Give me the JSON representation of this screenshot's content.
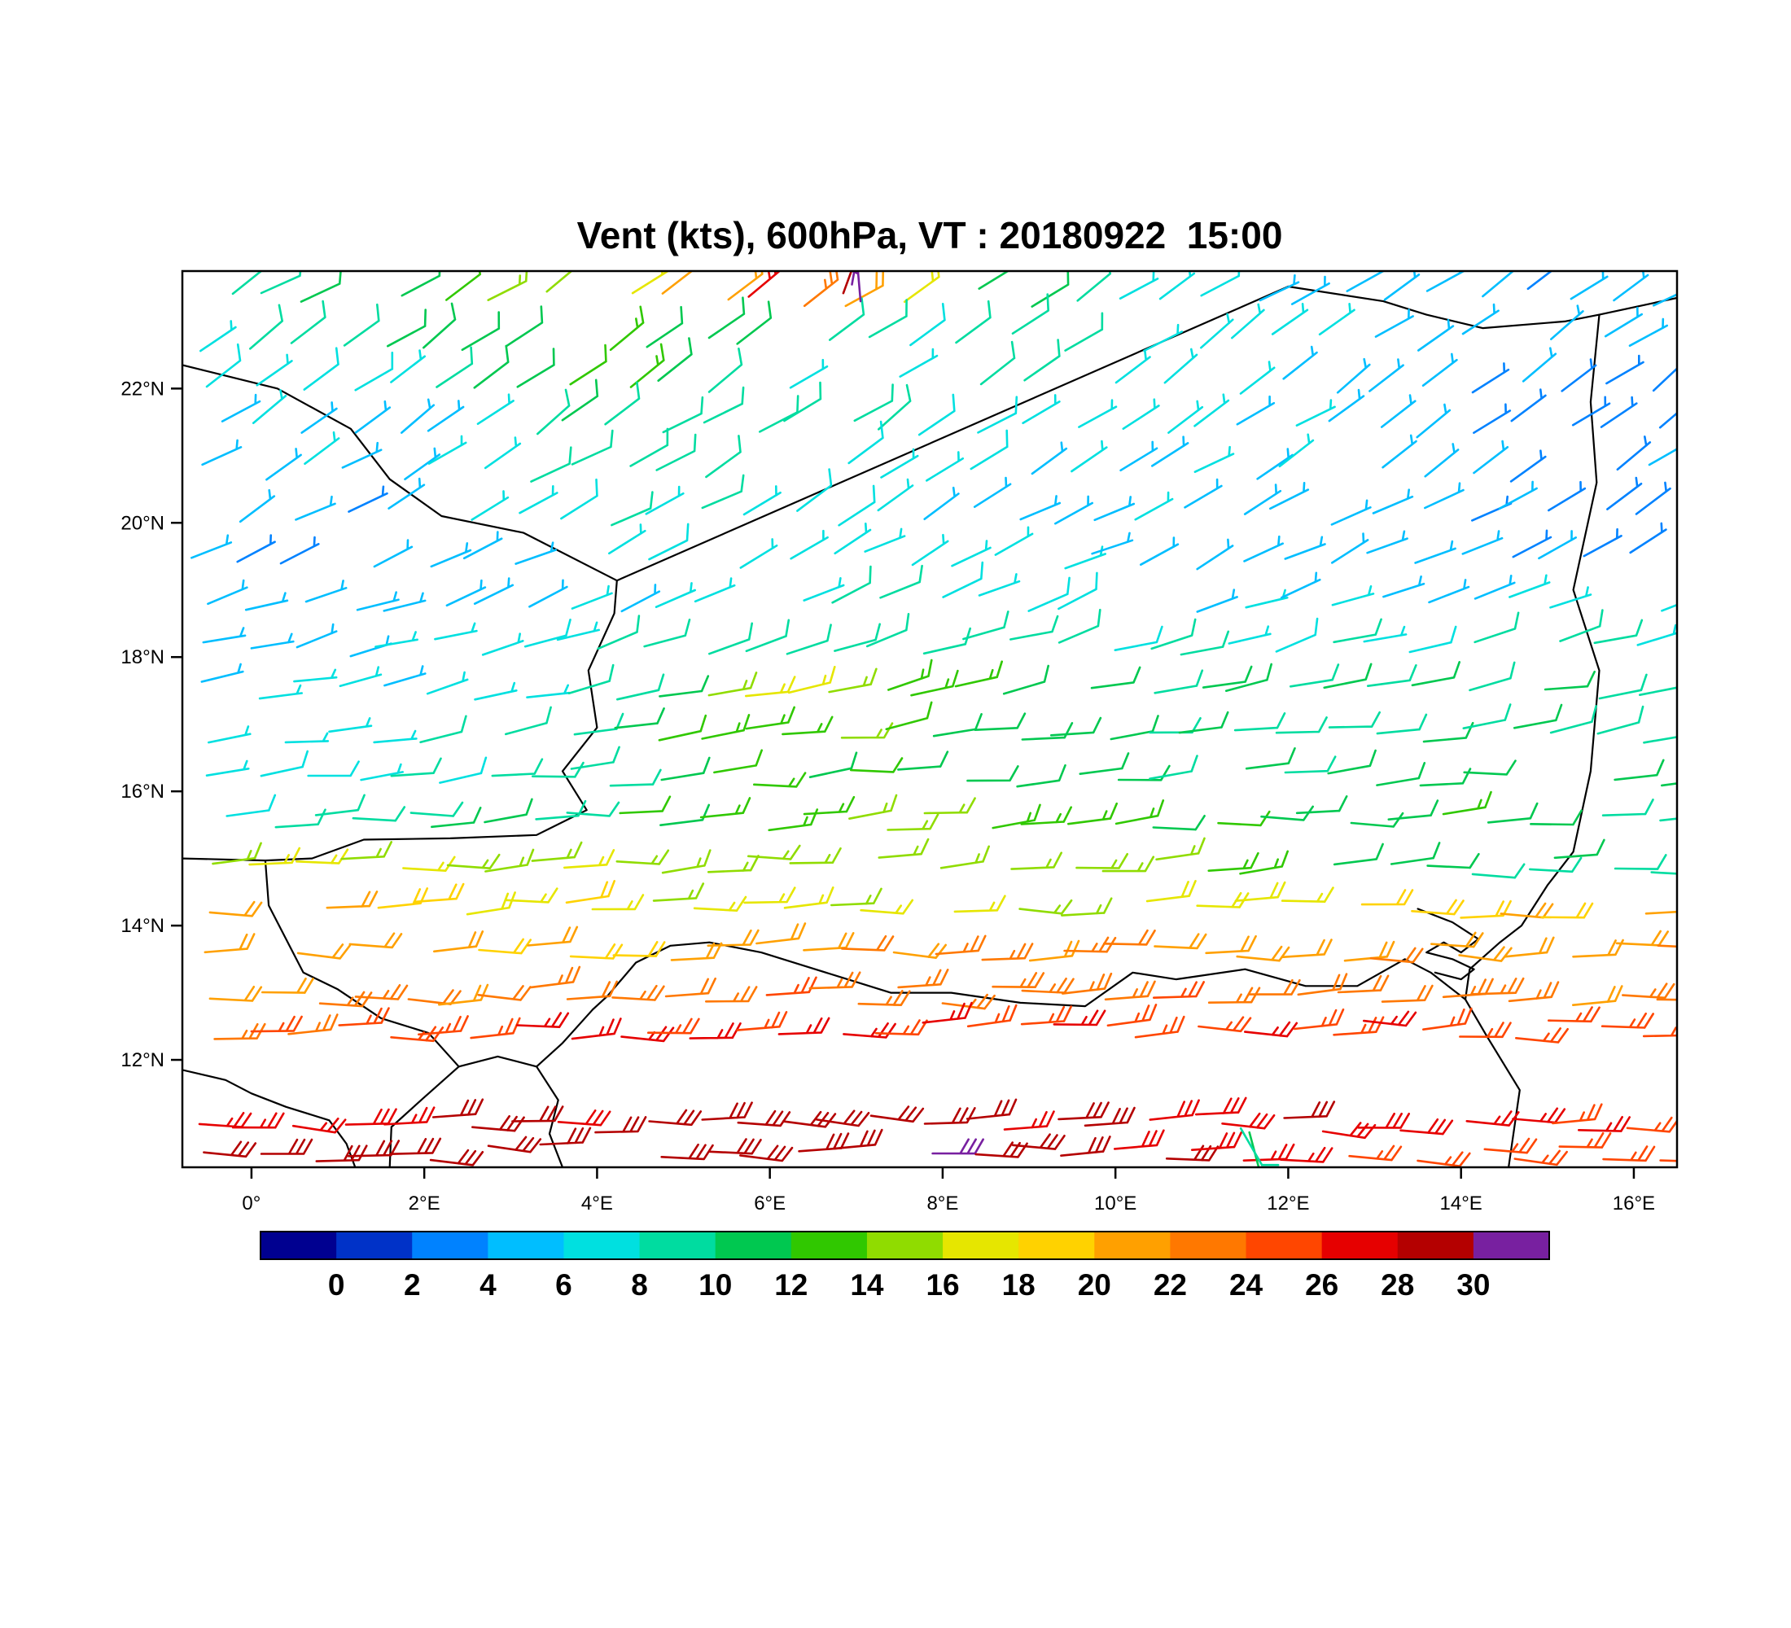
{
  "title": "Vent (kts), 600hPa, VT : 20180922  15:00",
  "axes": {
    "lat_ticks": [
      {
        "value": 22,
        "label": "22°N"
      },
      {
        "value": 20,
        "label": "20°N"
      },
      {
        "value": 18,
        "label": "18°N"
      },
      {
        "value": 16,
        "label": "16°N"
      },
      {
        "value": 14,
        "label": "14°N"
      },
      {
        "value": 12,
        "label": "12°N"
      }
    ],
    "lon_ticks": [
      {
        "value": 0,
        "label": "0°"
      },
      {
        "value": 2,
        "label": "2°E"
      },
      {
        "value": 4,
        "label": "4°E"
      },
      {
        "value": 6,
        "label": "6°E"
      },
      {
        "value": 8,
        "label": "8°E"
      },
      {
        "value": 10,
        "label": "10°E"
      },
      {
        "value": 12,
        "label": "12°E"
      },
      {
        "value": 14,
        "label": "14°E"
      },
      {
        "value": 16,
        "label": "16°E"
      }
    ]
  },
  "colorbar": {
    "labels": [
      "0",
      "2",
      "4",
      "6",
      "8",
      "10",
      "12",
      "14",
      "16",
      "18",
      "20",
      "22",
      "24",
      "26",
      "28",
      "30"
    ],
    "colors": [
      "#000090",
      "#0032C8",
      "#0082FF",
      "#00BEFF",
      "#00E0E0",
      "#00DCA0",
      "#00C850",
      "#30C800",
      "#90DC00",
      "#E6E600",
      "#FFD200",
      "#FFA000",
      "#FF7800",
      "#FF4600",
      "#E60000",
      "#B40000",
      "#7820A0"
    ]
  },
  "map": {
    "border_color": "#000000",
    "borders": [
      [
        [
          -0.8,
          22.35
        ],
        [
          0.3,
          22.0
        ],
        [
          1.15,
          21.4
        ],
        [
          1.6,
          20.65
        ],
        [
          2.2,
          20.1
        ],
        [
          3.15,
          19.85
        ],
        [
          4.23,
          19.14
        ]
      ],
      [
        [
          4.23,
          19.14
        ],
        [
          12.0,
          23.52
        ]
      ],
      [
        [
          12.0,
          23.52
        ],
        [
          13.1,
          23.3
        ],
        [
          13.6,
          23.1
        ],
        [
          14.25,
          22.9
        ],
        [
          15.2,
          23.0
        ],
        [
          15.6,
          23.1
        ],
        [
          16.5,
          23.35
        ]
      ],
      [
        [
          15.6,
          23.1
        ],
        [
          15.5,
          21.8
        ],
        [
          15.57,
          20.6
        ],
        [
          15.3,
          19.0
        ],
        [
          15.6,
          17.8
        ],
        [
          15.5,
          16.3
        ],
        [
          15.3,
          15.1
        ],
        [
          15.0,
          14.6
        ],
        [
          14.7,
          14.0
        ],
        [
          14.45,
          13.75
        ],
        [
          14.1,
          13.35
        ],
        [
          14.05,
          12.9
        ]
      ],
      [
        [
          13.5,
          14.25
        ],
        [
          13.9,
          14.05
        ],
        [
          14.2,
          13.8
        ],
        [
          14.0,
          13.6
        ],
        [
          13.8,
          13.75
        ],
        [
          13.6,
          13.6
        ],
        [
          13.9,
          13.5
        ],
        [
          14.15,
          13.35
        ],
        [
          14.0,
          13.2
        ],
        [
          13.7,
          13.3
        ]
      ],
      [
        [
          14.05,
          12.9
        ],
        [
          13.65,
          13.3
        ],
        [
          13.35,
          13.5
        ],
        [
          12.8,
          13.1
        ],
        [
          12.2,
          13.1
        ],
        [
          11.5,
          13.35
        ],
        [
          10.7,
          13.2
        ],
        [
          10.2,
          13.3
        ],
        [
          9.65,
          12.8
        ],
        [
          8.9,
          12.85
        ],
        [
          8.1,
          13.0
        ],
        [
          7.4,
          13.0
        ],
        [
          6.9,
          13.2
        ],
        [
          6.4,
          13.4
        ],
        [
          5.9,
          13.6
        ],
        [
          5.3,
          13.75
        ],
        [
          4.85,
          13.7
        ],
        [
          4.45,
          13.45
        ],
        [
          4.12,
          12.95
        ],
        [
          3.95,
          12.75
        ]
      ],
      [
        [
          3.95,
          12.75
        ],
        [
          3.6,
          12.25
        ],
        [
          3.3,
          11.9
        ],
        [
          2.85,
          12.05
        ],
        [
          2.4,
          11.9
        ],
        [
          2.05,
          12.4
        ],
        [
          1.5,
          12.62
        ],
        [
          1.0,
          13.05
        ],
        [
          0.6,
          13.3
        ],
        [
          0.2,
          14.3
        ],
        [
          0.16,
          14.97
        ]
      ],
      [
        [
          -0.8,
          15.0
        ],
        [
          0.16,
          14.97
        ],
        [
          0.7,
          15.0
        ],
        [
          1.3,
          15.28
        ],
        [
          2.3,
          15.3
        ],
        [
          3.3,
          15.35
        ],
        [
          3.88,
          15.72
        ],
        [
          3.6,
          16.3
        ],
        [
          4.0,
          16.95
        ],
        [
          3.9,
          17.8
        ],
        [
          4.2,
          18.65
        ],
        [
          4.23,
          19.14
        ]
      ],
      [
        [
          14.05,
          12.9
        ],
        [
          14.3,
          12.35
        ],
        [
          14.68,
          11.55
        ],
        [
          14.55,
          10.4
        ]
      ],
      [
        [
          3.3,
          11.9
        ],
        [
          3.55,
          11.4
        ],
        [
          3.45,
          10.9
        ],
        [
          3.6,
          10.4
        ]
      ],
      [
        [
          2.4,
          11.9
        ],
        [
          1.98,
          11.42
        ],
        [
          1.62,
          11.0
        ],
        [
          1.6,
          10.4
        ]
      ],
      [
        [
          -0.8,
          11.85
        ],
        [
          -0.3,
          11.7
        ],
        [
          0.0,
          11.5
        ],
        [
          0.4,
          11.3
        ],
        [
          0.9,
          11.1
        ],
        [
          1.1,
          10.75
        ],
        [
          1.2,
          10.4
        ]
      ]
    ]
  },
  "chart_data": {
    "type": "wind_barbs",
    "title": "Vent (kts), 600hPa, VT : 20180922  15:00",
    "units": "kts",
    "level": "600hPa",
    "valid_time": "20180922 15:00",
    "xlim": [
      -0.8,
      16.5
    ],
    "ylim": [
      10.4,
      23.75
    ],
    "lon_samples": [
      0,
      2,
      4,
      6,
      8,
      10,
      12,
      14,
      16
    ],
    "rows": [
      {
        "lat": 23.35,
        "dir_from": 58,
        "speeds": [
          10,
          13,
          15,
          26,
          14,
          8,
          6,
          5,
          4
        ]
      },
      {
        "lat": 22.7,
        "dir_from": 56,
        "speeds": [
          8,
          10,
          13,
          9,
          8,
          8,
          6,
          5,
          4
        ]
      },
      {
        "lat": 22.05,
        "dir_from": 54,
        "speeds": [
          7,
          8,
          14,
          8,
          8,
          7,
          6,
          4,
          3
        ]
      },
      {
        "lat": 21.4,
        "dir_from": 56,
        "speeds": [
          6,
          6,
          11,
          8,
          8,
          6,
          6,
          4,
          4
        ]
      },
      {
        "lat": 20.75,
        "dir_from": 58,
        "speeds": [
          5,
          6,
          9,
          8,
          7,
          6,
          6,
          5,
          4
        ]
      },
      {
        "lat": 20.1,
        "dir_from": 60,
        "speeds": [
          4,
          5,
          8,
          8,
          6,
          6,
          6,
          4,
          3
        ]
      },
      {
        "lat": 19.45,
        "dir_from": 64,
        "speeds": [
          4,
          4,
          6,
          8,
          6,
          6,
          5,
          4,
          4
        ]
      },
      {
        "lat": 18.8,
        "dir_from": 70,
        "speeds": [
          4,
          5,
          6,
          8,
          8,
          7,
          6,
          6,
          6
        ]
      },
      {
        "lat": 18.15,
        "dir_from": 74,
        "speeds": [
          5,
          6,
          8,
          10,
          9,
          8,
          8,
          8,
          8
        ]
      },
      {
        "lat": 17.5,
        "dir_from": 78,
        "speeds": [
          6,
          6,
          10,
          17,
          13,
          10,
          10,
          10,
          9
        ]
      },
      {
        "lat": 16.85,
        "dir_from": 82,
        "speeds": [
          6,
          8,
          10,
          15,
          12,
          10,
          10,
          10,
          9
        ]
      },
      {
        "lat": 16.2,
        "dir_from": 85,
        "speeds": [
          7,
          8,
          10,
          12,
          11,
          10,
          10,
          11,
          10
        ]
      },
      {
        "lat": 15.55,
        "dir_from": 87,
        "speeds": [
          8,
          10,
          11,
          14,
          14,
          12,
          11,
          12,
          10
        ]
      },
      {
        "lat": 14.9,
        "dir_from": 87,
        "speeds": [
          16,
          16,
          15,
          16,
          16,
          15,
          12,
          10,
          9
        ]
      },
      {
        "lat": 14.25,
        "dir_from": 89,
        "speeds": [
          21,
          19,
          17,
          16,
          16,
          17,
          18,
          19,
          21
        ]
      },
      {
        "lat": 13.6,
        "dir_from": 90,
        "speeds": [
          21,
          21,
          20,
          21,
          22,
          22,
          22,
          21,
          22
        ]
      },
      {
        "lat": 12.95,
        "dir_from": 90,
        "speeds": [
          22,
          22,
          23,
          24,
          24,
          24,
          23,
          22,
          23
        ]
      },
      {
        "lat": 12.45,
        "dir_from": 90,
        "speeds": [
          24,
          25,
          26,
          26,
          26,
          26,
          26,
          25,
          24
        ]
      },
      {
        "lat": 11.05,
        "dir_from": 91,
        "speeds": [
          26,
          28,
          28,
          30,
          28,
          28,
          28,
          27,
          26
        ]
      },
      {
        "lat": 10.62,
        "dir_from": 91,
        "speeds": [
          28,
          30,
          28,
          30,
          30,
          28,
          26,
          25,
          24
        ]
      }
    ],
    "special_barbs": [
      {
        "lon": 6.95,
        "lat": 23.55,
        "dir_from": 10,
        "speed": 30
      },
      {
        "lon": 7.05,
        "lat": 23.3,
        "dir_from": 355,
        "speed": 30
      },
      {
        "lon": 6.85,
        "lat": 23.42,
        "dir_from": 20,
        "speed": 28
      },
      {
        "lon": 11.55,
        "lat": 10.92,
        "dir_from": 165,
        "speed": 10
      },
      {
        "lon": 11.45,
        "lat": 10.98,
        "dir_from": 150,
        "speed": 8
      }
    ]
  }
}
